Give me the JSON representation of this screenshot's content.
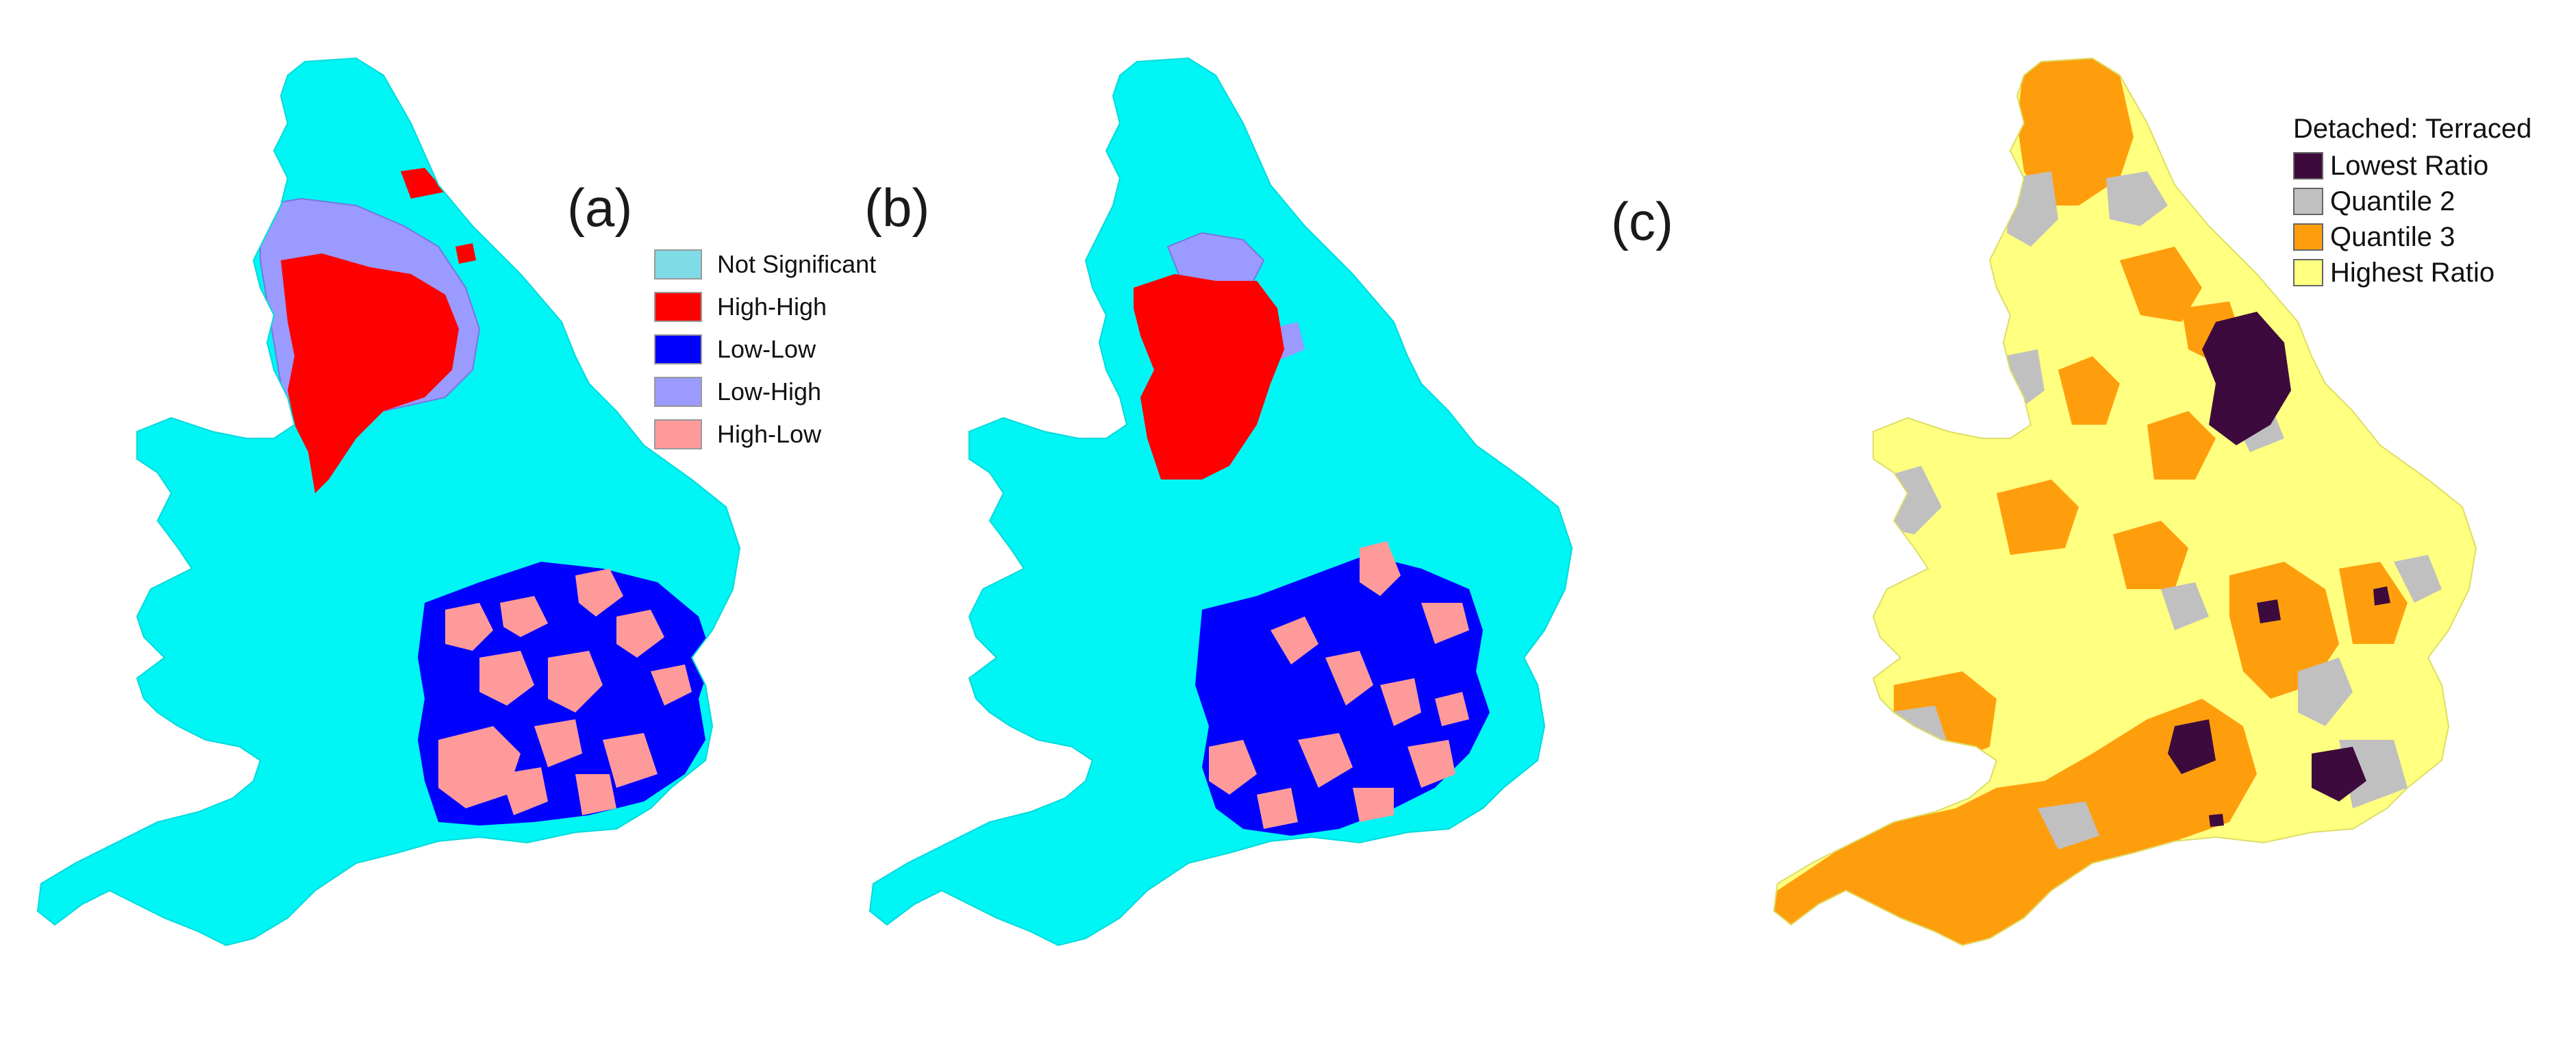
{
  "panels": [
    {
      "id": "a",
      "label": "(a)"
    },
    {
      "id": "b",
      "label": "(b)"
    },
    {
      "id": "c",
      "label": "(c)"
    }
  ],
  "legend_lisa": {
    "items": [
      {
        "label": "Not Significant",
        "color": "#7fdbe6"
      },
      {
        "label": "High-High",
        "color": "#ff0000"
      },
      {
        "label": "Low-Low",
        "color": "#0000ff"
      },
      {
        "label": "Low-High",
        "color": "#9a9aff"
      },
      {
        "label": "High-Low",
        "color": "#ff9a9a"
      }
    ]
  },
  "legend_ratio": {
    "title": "Detached: Terraced",
    "items": [
      {
        "label": "Lowest Ratio",
        "color": "#3d0a3d"
      },
      {
        "label": "Quantile 2",
        "color": "#c0c0c0"
      },
      {
        "label": "Quantile 3",
        "color": "#ff9e0d"
      },
      {
        "label": "Highest Ratio",
        "color": "#ffff80"
      }
    ]
  },
  "map_colors": {
    "base_cyan": "#00f5f5",
    "high_high": "#ff0000",
    "low_low": "#0000ff",
    "low_high": "#9a9aff",
    "high_low": "#ff9a9a",
    "lowest": "#3d0a3d",
    "q2": "#c0c0c0",
    "q3": "#ff9e0d",
    "highest": "#ffff80"
  }
}
